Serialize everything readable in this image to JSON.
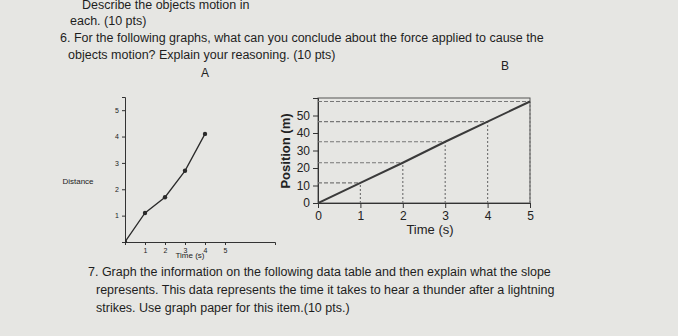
{
  "document": {
    "header_lines": [
      "Describe the objects motion in",
      "each. (10 pts)"
    ],
    "question_6": [
      "6. For the following graphs, what can you conclude about the force applied to cause the",
      "objects motion? Explain your reasoning. (10 pts)"
    ],
    "question_7": [
      "7. Graph the information on the following data table and then explain what the slope",
      "represents. This data represents the time it takes to hear a thunder after a lightning",
      "strikes. Use graph paper for this item.(10 pts.)"
    ]
  },
  "chart_data": [
    {
      "type": "line",
      "title": "A",
      "x": [
        0,
        1,
        2,
        3,
        4
      ],
      "values": [
        0,
        1.1,
        1.7,
        2.7,
        4.1
      ],
      "xlim": [
        0,
        7.5
      ],
      "ylim": [
        0,
        5.5
      ],
      "xticks": [
        1,
        2,
        3,
        4,
        5
      ],
      "yticks": [
        1,
        2,
        3,
        4,
        5
      ],
      "xlabel": "Time (s)",
      "ylabel": "Distance",
      "color": "#2a2a2a",
      "marker": "circle"
    },
    {
      "type": "line",
      "title": "B",
      "x": [
        0,
        1,
        2,
        3,
        4,
        5
      ],
      "values": [
        0,
        11.5,
        23,
        35,
        46.5,
        58
      ],
      "xlim": [
        0,
        5
      ],
      "ylim": [
        0,
        60
      ],
      "xticks": [
        0,
        1,
        2,
        3,
        4,
        5
      ],
      "yticks": [
        0,
        10,
        20,
        30,
        40,
        50
      ],
      "xlabel": "Time (s)",
      "ylabel": "Position (m)",
      "color": "#3a3a3a",
      "marker": "dropline"
    }
  ]
}
